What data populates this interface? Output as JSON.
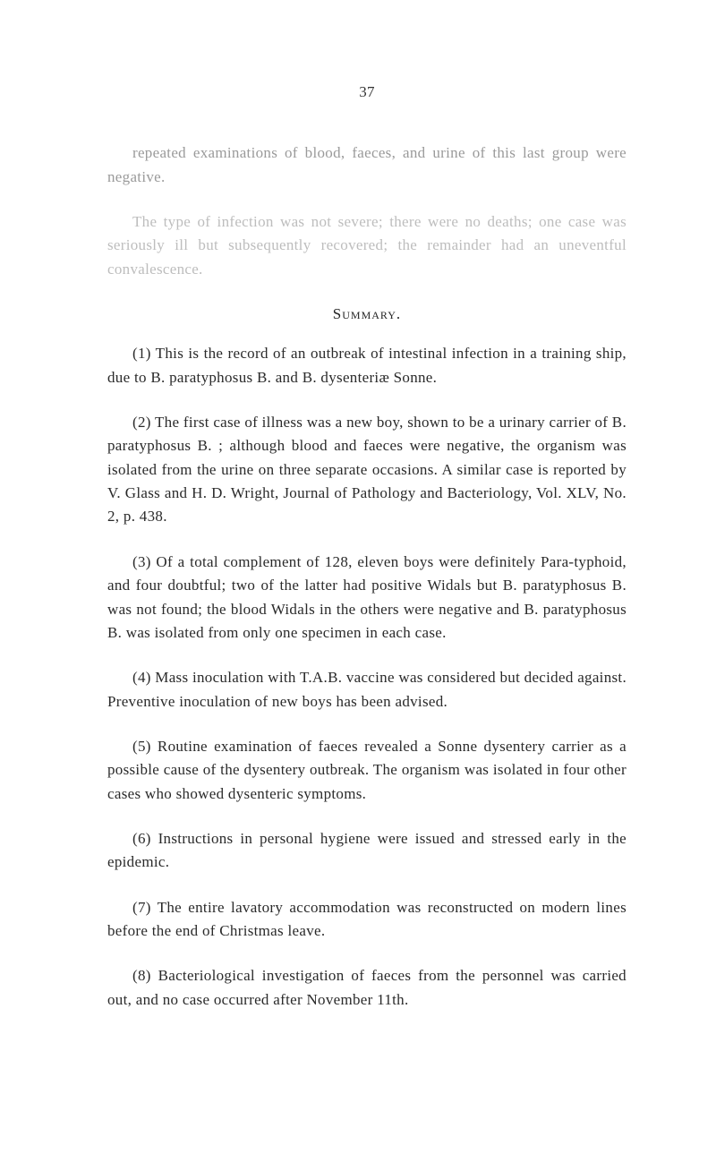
{
  "page_number": "37",
  "intro_para_1": "repeated examinations of blood, faeces, and urine of this last group were negative.",
  "intro_para_2": "The type of infection was not severe; there were no deaths; one case was seriously ill but subsequently recovered; the remainder had an uneventful convalescence.",
  "summary_label": "Summary.",
  "items": [
    "(1) This is the record of an outbreak of intestinal infection in a training ship, due to B. paratyphosus B. and B. dysenteriæ Sonne.",
    "(2) The first case of illness was a new boy, shown to be a urinary carrier of B. paratyphosus B. ; although blood and faeces were negative, the organism was isolated from the urine on three separate occasions. A similar case is reported by V. Glass and H. D. Wright, Journal of Pathology and Bacteriology, Vol. XLV, No. 2, p. 438.",
    "(3) Of a total complement of 128, eleven boys were definitely Para-typhoid, and four doubtful; two of the latter had positive Widals but B. paratyphosus B. was not found; the blood Widals in the others were negative and B. paratyphosus B. was isolated from only one specimen in each case.",
    "(4) Mass inoculation with T.A.B. vaccine was considered but decided against. Preventive inoculation of new boys has been advised.",
    "(5) Routine examination of faeces revealed a Sonne dysentery carrier as a possible cause of the dysentery outbreak. The organism was isolated in four other cases who showed dysenteric symptoms.",
    "(6) Instructions in personal hygiene were issued and stressed early in the epidemic.",
    "(7) The entire lavatory accommodation was reconstructed on modern lines before the end of Christmas leave.",
    "(8) Bacteriological investigation of faeces from the personnel was carried out, and no case occurred after November 11th."
  ]
}
